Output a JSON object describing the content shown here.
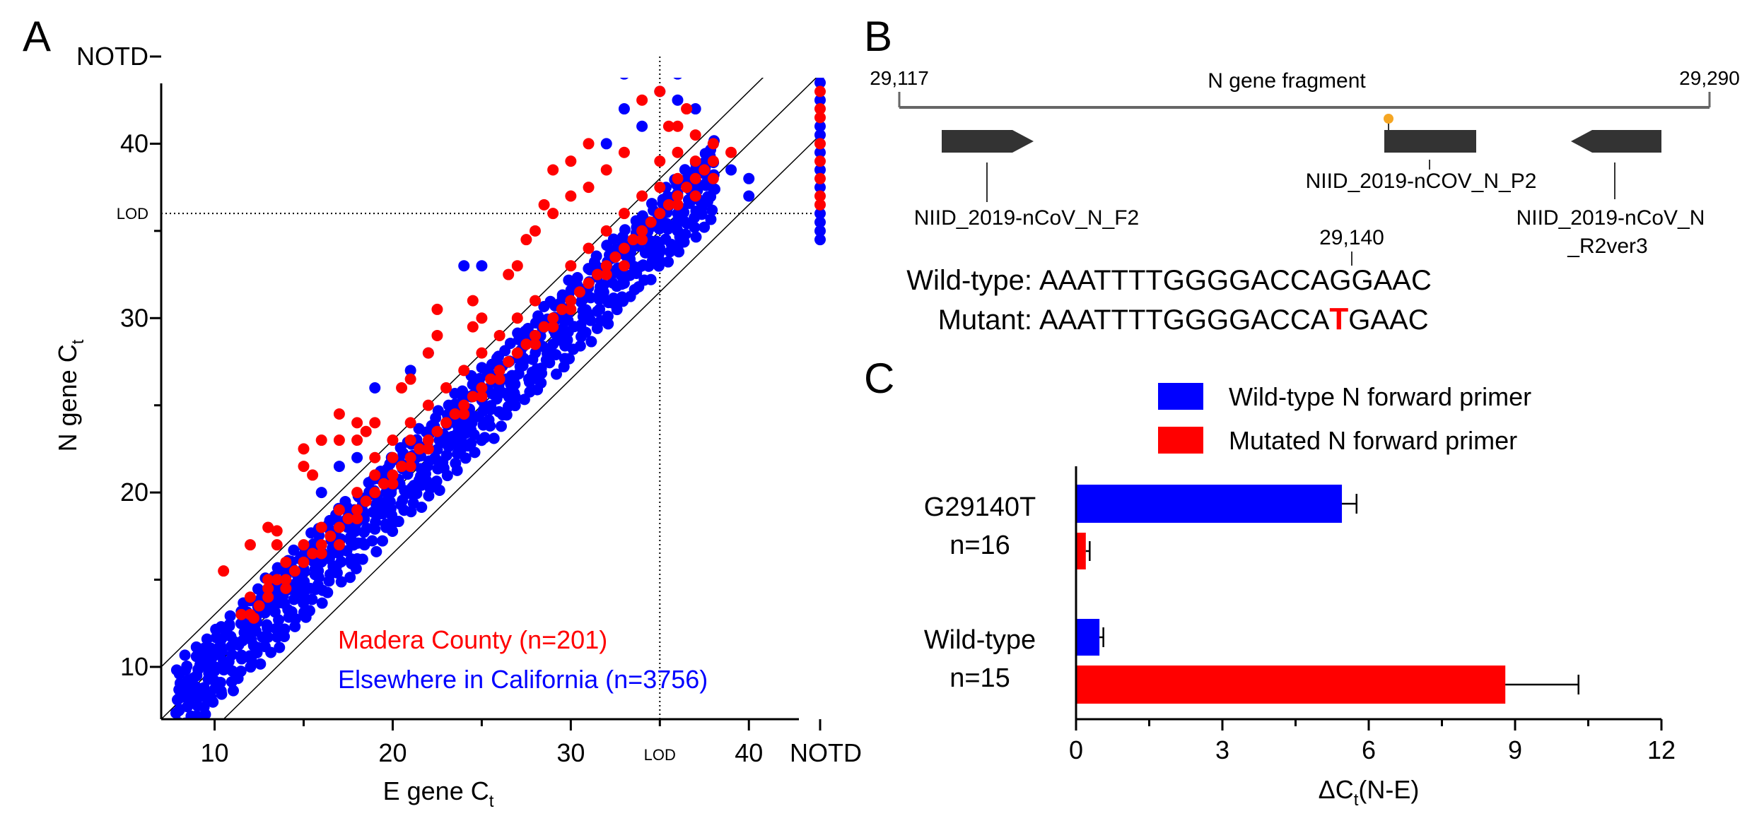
{
  "panel_a": {
    "letter": "A",
    "legend": {
      "madera": "Madera County (n=201)",
      "elsewhere": "Elsewhere in California (n=3756)"
    },
    "chart_data": {
      "type": "scatter",
      "xlabel_main": "E gene C",
      "xlabel_sub": "t",
      "ylabel_main": "N gene C",
      "ylabel_sub": "t",
      "x_ticks": [
        "10",
        "20",
        "30",
        "40"
      ],
      "x_notd": "NOTD",
      "x_lod_label": "LOD",
      "y_ticks": [
        "10",
        "20",
        "30",
        "40"
      ],
      "y_notd": "NOTD",
      "y_lod_label": "LOD",
      "xlim": [
        7,
        44
      ],
      "ylim": [
        7,
        45
      ],
      "lod_x": 35,
      "lod_y": 36,
      "diagonal_lines": [
        {
          "offset": 3
        },
        {
          "offset": 0
        },
        {
          "offset": -3.5
        }
      ],
      "colors": {
        "madera": "#ff0000",
        "elsewhere": "#0000ff"
      },
      "series": [
        {
          "name": "Madera County (n=201)",
          "points": [
            [
              10.5,
              15.5
            ],
            [
              12,
              17
            ],
            [
              13,
              18
            ],
            [
              13.5,
              17.8
            ],
            [
              13.5,
              17
            ],
            [
              15.5,
              21
            ],
            [
              15,
              21.5
            ],
            [
              15,
              22.5
            ],
            [
              16,
              23
            ],
            [
              17,
              24.5
            ],
            [
              17,
              23
            ],
            [
              18,
              24
            ],
            [
              18.5,
              23.5
            ],
            [
              19,
              24
            ],
            [
              18,
              23
            ],
            [
              20.5,
              26
            ],
            [
              21,
              26.5
            ],
            [
              22,
              28
            ],
            [
              22.5,
              29
            ],
            [
              22.5,
              30.5
            ],
            [
              24.5,
              29.5
            ],
            [
              25,
              30
            ],
            [
              24.5,
              31
            ],
            [
              26.5,
              32.5
            ],
            [
              27,
              33
            ],
            [
              27.5,
              34.5
            ],
            [
              28,
              35
            ],
            [
              28.5,
              36.5
            ],
            [
              29,
              38.5
            ],
            [
              30,
              39
            ],
            [
              31,
              40
            ],
            [
              32,
              45
            ],
            [
              33.5,
              45.5
            ],
            [
              34,
              45
            ],
            [
              36,
              45
            ],
            [
              38,
              45
            ],
            [
              40,
              45
            ],
            [
              35.5,
              41
            ],
            [
              36.5,
              42
            ],
            [
              38,
              40
            ],
            [
              39,
              39.5
            ],
            [
              12,
              13
            ],
            [
              12.5,
              13.5
            ],
            [
              13,
              14
            ],
            [
              13.5,
              15
            ],
            [
              14,
              15
            ],
            [
              14.5,
              15.5
            ],
            [
              15,
              16
            ],
            [
              15.5,
              16.5
            ],
            [
              16,
              17
            ],
            [
              16.5,
              17.5
            ],
            [
              17,
              18
            ],
            [
              17.5,
              18.5
            ],
            [
              18,
              19
            ],
            [
              18.5,
              19.5
            ],
            [
              19,
              20
            ],
            [
              19.5,
              20.5
            ],
            [
              20,
              21
            ],
            [
              20.5,
              21.5
            ],
            [
              21,
              22
            ],
            [
              21.5,
              22.5
            ],
            [
              22,
              23
            ],
            [
              22.5,
              23.5
            ],
            [
              23,
              24
            ],
            [
              23.5,
              24.5
            ],
            [
              24,
              25
            ],
            [
              24.5,
              25.5
            ],
            [
              25,
              26
            ],
            [
              25.5,
              26.5
            ],
            [
              26,
              27
            ],
            [
              26.5,
              27.5
            ],
            [
              27,
              28
            ],
            [
              27.5,
              28.5
            ],
            [
              28,
              29
            ],
            [
              28.5,
              29.5
            ],
            [
              29,
              30
            ],
            [
              29.5,
              30.5
            ],
            [
              30,
              31
            ],
            [
              30.5,
              31.5
            ],
            [
              31,
              32
            ],
            [
              31.5,
              32.5
            ],
            [
              32,
              33
            ],
            [
              32.5,
              33.5
            ],
            [
              33,
              34
            ],
            [
              33.5,
              34.5
            ],
            [
              34,
              35
            ],
            [
              34.5,
              35.5
            ],
            [
              35,
              36
            ],
            [
              35.5,
              36.5
            ],
            [
              36,
              37
            ],
            [
              36.5,
              37.5
            ],
            [
              37,
              38
            ],
            [
              37.5,
              38.5
            ],
            [
              38,
              39
            ],
            [
              14,
              14.5
            ],
            [
              16,
              16.5
            ],
            [
              18,
              18.5
            ],
            [
              20,
              20.5
            ],
            [
              22,
              22.5
            ],
            [
              24,
              24.5
            ],
            [
              26,
              26.5
            ],
            [
              28,
              28.5
            ],
            [
              30,
              30.5
            ],
            [
              32,
              32.5
            ],
            [
              34,
              34.5
            ],
            [
              36,
              36.5
            ],
            [
              44,
              38
            ],
            [
              44,
              39
            ],
            [
              44,
              40
            ],
            [
              44,
              37
            ],
            [
              44,
              36.5
            ],
            [
              44,
              43
            ],
            [
              44,
              41.5
            ],
            [
              44,
              42
            ],
            [
              13,
              14.5
            ],
            [
              17,
              17
            ],
            [
              21,
              21.5
            ],
            [
              25,
              25.5
            ],
            [
              29,
              29.5
            ],
            [
              33,
              33
            ],
            [
              37,
              37
            ],
            [
              35,
              37.5
            ],
            [
              34,
              37
            ],
            [
              33,
              36
            ],
            [
              36,
              38
            ],
            [
              38,
              38
            ],
            [
              37,
              39
            ],
            [
              36,
              39.5
            ],
            [
              35,
              39
            ],
            [
              30,
              33
            ],
            [
              31,
              34
            ],
            [
              32,
              35
            ],
            [
              28,
              31
            ],
            [
              27,
              30
            ],
            [
              26,
              29
            ],
            [
              25,
              28
            ],
            [
              24,
              27
            ],
            [
              23,
              26
            ],
            [
              22,
              25
            ],
            [
              21,
              24
            ],
            [
              20,
              23
            ],
            [
              19,
              22
            ],
            [
              19,
              21
            ],
            [
              20,
              22
            ],
            [
              21,
              23
            ],
            [
              18,
              20
            ],
            [
              17,
              19
            ],
            [
              16,
              18
            ],
            [
              15,
              17
            ],
            [
              14,
              16
            ],
            [
              13,
              15
            ],
            [
              12,
              14
            ],
            [
              11.5,
              13
            ],
            [
              12.2,
              12.8
            ],
            [
              40,
              45.5
            ],
            [
              41,
              45
            ],
            [
              37,
              45
            ],
            [
              39,
              45
            ],
            [
              33,
              45
            ],
            [
              35,
              45
            ],
            [
              33,
              39.5
            ],
            [
              32,
              38.5
            ],
            [
              31,
              37.5
            ],
            [
              30,
              37
            ],
            [
              29,
              36
            ],
            [
              34,
              42.5
            ],
            [
              35,
              43
            ],
            [
              36,
              41
            ],
            [
              37,
              40.5
            ]
          ]
        },
        {
          "name": "Elsewhere in California (n=3756)",
          "band": {
            "x_start": 8,
            "x_end": 38,
            "step": 0.5,
            "offsets": [
              -2.2,
              -1.7,
              -1.2,
              -0.8,
              -0.4,
              0,
              0.4,
              0.8,
              1.2,
              1.6,
              2.0
            ]
          },
          "points": [
            [
              8,
              7.5
            ],
            [
              8,
              8.2
            ],
            [
              8.5,
              8.5
            ],
            [
              9,
              8.8
            ],
            [
              9.5,
              8.5
            ],
            [
              9,
              9.5
            ],
            [
              10,
              9.2
            ],
            [
              34,
              45
            ],
            [
              35,
              45
            ],
            [
              36,
              45
            ],
            [
              37,
              45
            ],
            [
              38,
              45
            ],
            [
              39,
              45
            ],
            [
              40,
              45
            ],
            [
              41,
              45
            ],
            [
              42,
              45
            ],
            [
              44,
              45
            ],
            [
              35,
              43
            ],
            [
              36,
              44
            ],
            [
              37,
              42
            ],
            [
              36,
              42.5
            ],
            [
              33,
              44
            ],
            [
              34,
              41
            ],
            [
              33,
              42
            ],
            [
              32,
              40
            ],
            [
              44,
              47
            ],
            [
              44,
              46
            ],
            [
              44,
              44
            ],
            [
              44,
              43.5
            ],
            [
              44,
              42.5
            ],
            [
              44,
              41
            ],
            [
              44,
              40.5
            ],
            [
              44,
              39.5
            ],
            [
              44,
              38.5
            ],
            [
              44,
              37.5
            ],
            [
              44,
              36
            ],
            [
              44,
              35.5
            ],
            [
              44,
              35
            ],
            [
              44,
              34.5
            ],
            [
              25,
              33
            ],
            [
              24,
              33
            ],
            [
              22,
              28
            ],
            [
              21,
              27
            ],
            [
              19,
              26
            ],
            [
              16,
              20
            ],
            [
              17,
              21.5
            ],
            [
              18,
              22
            ],
            [
              40,
              38
            ],
            [
              40,
              37
            ],
            [
              39,
              38.5
            ],
            [
              38,
              40
            ],
            [
              36,
              36
            ],
            [
              34,
              33
            ],
            [
              33,
              32
            ],
            [
              35,
              34
            ],
            [
              36,
              35
            ]
          ]
        }
      ]
    }
  },
  "panel_b": {
    "letter": "B",
    "start_label": "29,117",
    "end_label": "29,290",
    "fragment_label": "N gene fragment",
    "forward_primer": "NIID_2019-nCoV_N_F2",
    "probe": "NIID_2019-nCOV_N_P2",
    "reverse_primer_line1": "NIID_2019-nCoV_N",
    "reverse_primer_line2": "_R2ver3",
    "position_label": "29,140",
    "wildtype_label": "Wild-type:",
    "wildtype_seq": "AAATTTTGGGGACCAGGAAC",
    "mutant_label": "Mutant:",
    "mutant_seq_pre": "AAATTTTGGGGACCA",
    "mutant_seq_mut": "T",
    "mutant_seq_post": "GAAC",
    "colors": {
      "feature": "#333333",
      "mutation_marker": "#f5a623",
      "mutation_text": "#ff0000"
    }
  },
  "panel_c": {
    "letter": "C",
    "chart_data": {
      "type": "bar",
      "orientation": "horizontal",
      "categories": [
        {
          "line1": "G29140T",
          "line2": "n=16"
        },
        {
          "line1": "Wild-type",
          "line2": "n=15"
        }
      ],
      "series": [
        {
          "name": "Wild-type N forward primer",
          "color": "#0000ff",
          "values": [
            5.45,
            0.48
          ],
          "errors": [
            0.3,
            0.08
          ]
        },
        {
          "name": "Mutated N forward primer",
          "color": "#ff0000",
          "values": [
            0.2,
            8.8
          ],
          "errors": [
            0.08,
            1.5
          ]
        }
      ],
      "xlim": [
        0,
        12
      ],
      "x_ticks": [
        "0",
        "3",
        "6",
        "9",
        "12"
      ],
      "xlabel_pre": "ΔC",
      "xlabel_sub": "t",
      "xlabel_post": "(N-E)"
    }
  }
}
